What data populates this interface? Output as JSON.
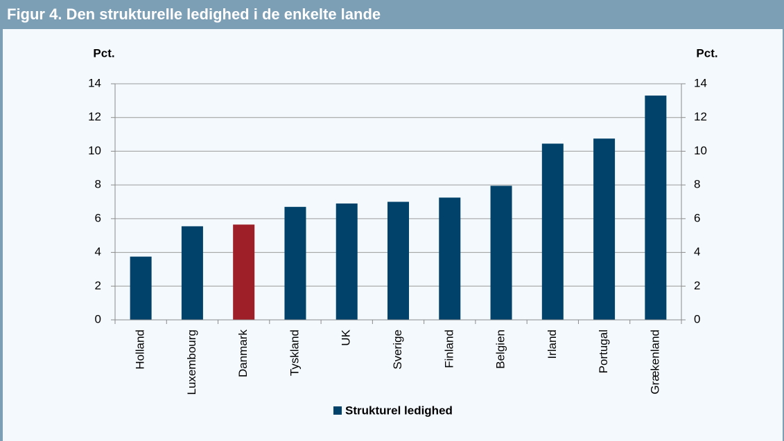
{
  "chart_data": {
    "type": "bar",
    "title": "Figur 4. Den strukturelle ledighed i de enkelte lande",
    "ylabel": "Pct.",
    "y2label": "Pct.",
    "categories": [
      "Holland",
      "Luxembourg",
      "Danmark",
      "Tyskland",
      "UK",
      "Sverige",
      "Finland",
      "Belgien",
      "Irland",
      "Portugal",
      "Grækenland"
    ],
    "series": [
      {
        "name": "Strukturel ledighed",
        "color": "#00426a",
        "values": [
          3.75,
          5.55,
          5.65,
          6.7,
          6.9,
          7.0,
          7.25,
          7.95,
          10.45,
          10.75,
          13.3
        ],
        "colors": [
          "#00426a",
          "#00426a",
          "#9e1f27",
          "#00426a",
          "#00426a",
          "#00426a",
          "#00426a",
          "#00426a",
          "#00426a",
          "#00426a",
          "#00426a"
        ]
      }
    ],
    "ylim": [
      0,
      14
    ],
    "yticks": [
      0,
      2,
      4,
      6,
      8,
      10,
      12,
      14
    ],
    "y2lim": [
      0,
      14
    ],
    "y2ticks": [
      0,
      2,
      4,
      6,
      8,
      10,
      12,
      14
    ],
    "grid": true
  }
}
